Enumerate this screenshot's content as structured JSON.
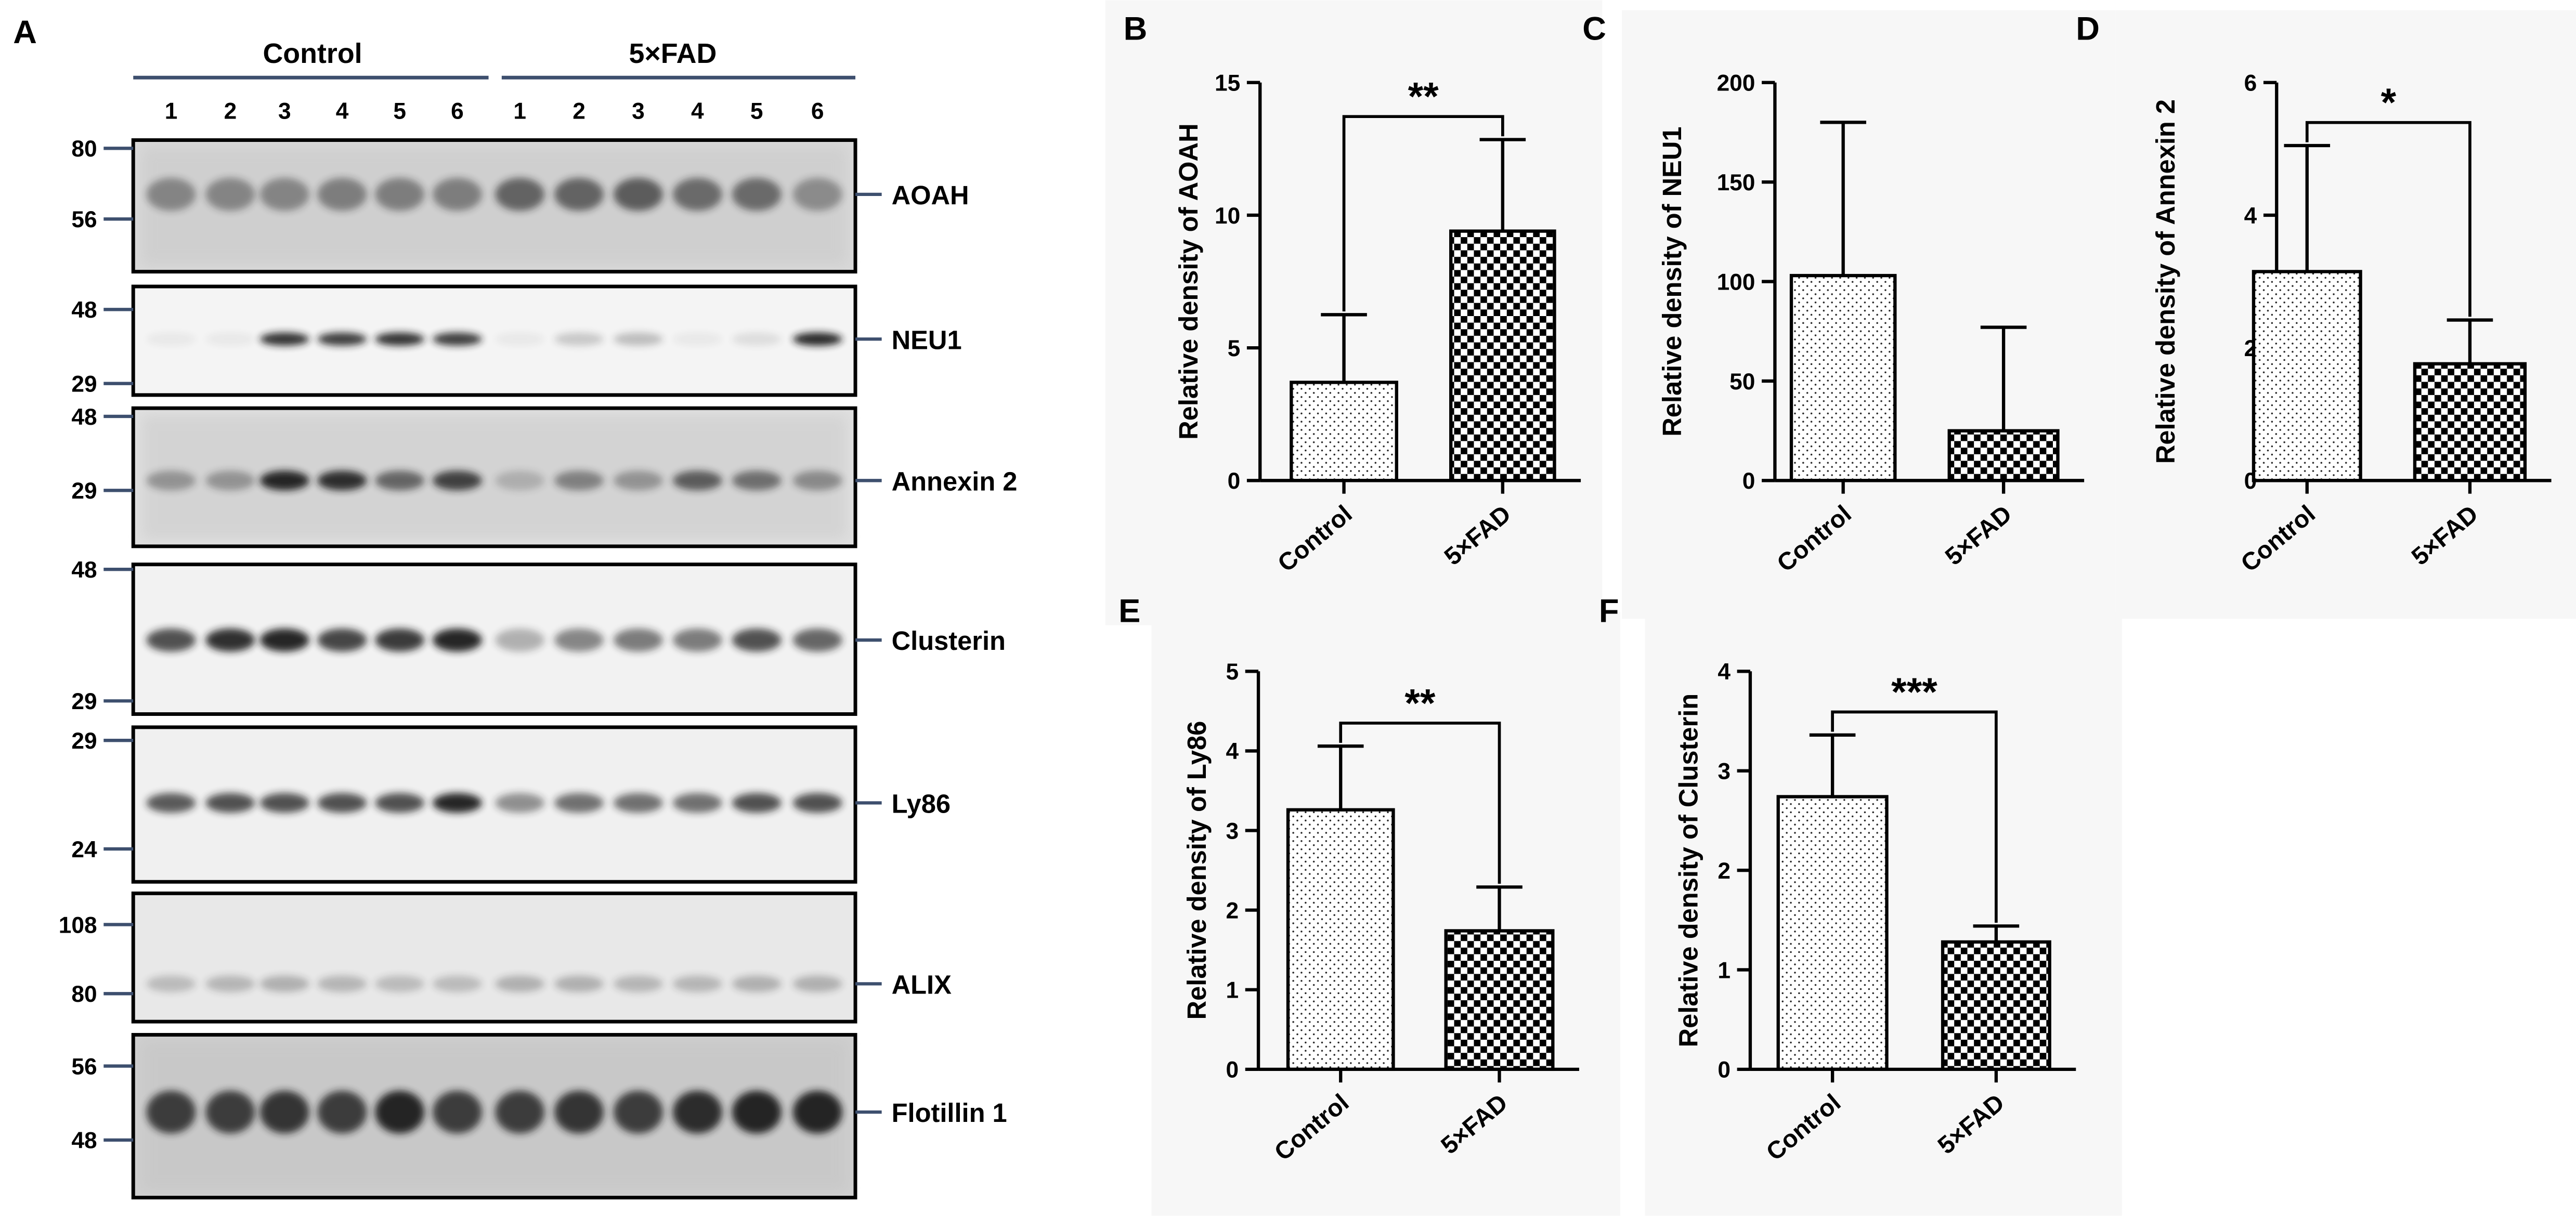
{
  "panels": {
    "A": "A",
    "B": "B",
    "C": "C",
    "D": "D",
    "E": "E",
    "F": "F"
  },
  "blot": {
    "groups": [
      "Control",
      "5×FAD"
    ],
    "lanes": [
      "1",
      "2",
      "3",
      "4",
      "5",
      "6",
      "1",
      "2",
      "3",
      "4",
      "5",
      "6"
    ],
    "strips": [
      {
        "protein": "AOAH",
        "markers": [
          "80",
          "56"
        ]
      },
      {
        "protein": "NEU1",
        "markers": [
          "48",
          "29"
        ]
      },
      {
        "protein": "Annexin 2",
        "markers": [
          "48",
          "29"
        ]
      },
      {
        "protein": "Clusterin",
        "markers": [
          "48",
          "29"
        ]
      },
      {
        "protein": "Ly86",
        "markers": [
          "29",
          "24"
        ]
      },
      {
        "protein": "ALIX",
        "markers": [
          "108",
          "80"
        ]
      },
      {
        "protein": "Flotillin 1",
        "markers": [
          "56",
          "48"
        ]
      }
    ]
  },
  "chart_data": [
    {
      "panel": "B",
      "type": "bar",
      "categories": [
        "Control",
        "5×FAD"
      ],
      "values": [
        3.7,
        9.4
      ],
      "errors": [
        2.55,
        3.45
      ],
      "ylabel": "Relative density of AOAH",
      "ylim": [
        0,
        15
      ],
      "yticks": [
        0,
        5,
        10,
        15
      ],
      "significance": "**"
    },
    {
      "panel": "C",
      "type": "bar",
      "categories": [
        "Control",
        "5×FAD"
      ],
      "values": [
        103,
        25
      ],
      "errors": [
        77,
        52
      ],
      "ylabel": "Relative density of NEU1",
      "ylim": [
        0,
        200
      ],
      "yticks": [
        0,
        50,
        100,
        150,
        200
      ],
      "significance": ""
    },
    {
      "panel": "D",
      "type": "bar",
      "categories": [
        "Control",
        "5×FAD"
      ],
      "values": [
        3.15,
        1.76
      ],
      "errors": [
        1.9,
        0.66
      ],
      "ylabel": "Relative density of Annexin 2",
      "ylim": [
        0,
        6
      ],
      "yticks": [
        0,
        2,
        4,
        6
      ],
      "significance": "*"
    },
    {
      "panel": "E",
      "type": "bar",
      "categories": [
        "Control",
        "5×FAD"
      ],
      "values": [
        3.26,
        1.74
      ],
      "errors": [
        0.8,
        0.55
      ],
      "ylabel": "Relative density of Ly86",
      "ylim": [
        0,
        5
      ],
      "yticks": [
        0,
        1,
        2,
        3,
        4,
        5
      ],
      "significance": "**"
    },
    {
      "panel": "F",
      "type": "bar",
      "categories": [
        "Control",
        "5×FAD"
      ],
      "values": [
        2.74,
        1.28
      ],
      "errors": [
        0.62,
        0.16
      ],
      "ylabel": "Relative density of Clusterin",
      "ylim": [
        0,
        4
      ],
      "yticks": [
        0,
        1,
        2,
        3,
        4
      ],
      "significance": "***"
    }
  ],
  "colors": {
    "ink": "#000000",
    "chart_bg": "#f7f7f7",
    "blot_bg": "#ececec",
    "band": "#2a2a2a",
    "group_line": "#3d4f6e"
  }
}
